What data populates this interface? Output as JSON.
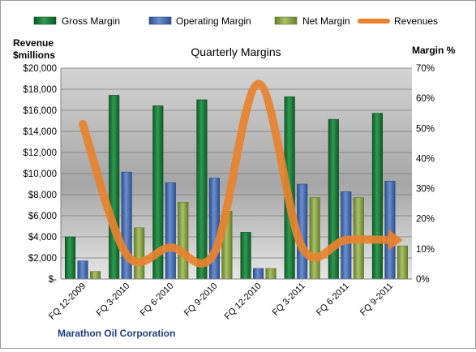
{
  "chart_data": {
    "type": "bar",
    "title": "Quarterly Margins",
    "company": "Marathon Oil Corporation",
    "y_left_label": [
      "Revenue",
      "$millions"
    ],
    "y_right_label": "Margin %",
    "categories": [
      "FQ 12-2009",
      "FQ 3-2010",
      "FQ 6-2010",
      "FQ 9-2010",
      "FQ 12-2010",
      "FQ 3-2011",
      "FQ 6-2011",
      "FQ 9-2011"
    ],
    "y_left_ticks": [
      "$-",
      "$2,000",
      "$4,000",
      "$6,000",
      "$8,000",
      "$10,000",
      "$12,000",
      "$14,000",
      "$16,000",
      "$18,000",
      "$20,000"
    ],
    "y_right_ticks": [
      "0%",
      "10%",
      "20%",
      "30%",
      "40%",
      "50%",
      "60%",
      "70%"
    ],
    "ylim_left": [
      0,
      20000
    ],
    "ylim_right": [
      0,
      70
    ],
    "grid": true,
    "legend_position": "top",
    "series": [
      {
        "name": "Gross Margin",
        "axis": "right",
        "color": "#1e7b3a",
        "values": [
          14,
          61,
          57.5,
          59.5,
          15.5,
          60.5,
          53,
          55
        ]
      },
      {
        "name": "Operating Margin",
        "axis": "right",
        "color": "#4a6eb0",
        "values": [
          6,
          35.5,
          32,
          33.5,
          3.5,
          31.5,
          29,
          32.5
        ]
      },
      {
        "name": "Net Margin",
        "axis": "right",
        "color": "#8aa445",
        "values": [
          2.5,
          17,
          25.5,
          22.5,
          3.5,
          27,
          27,
          11
        ]
      },
      {
        "name": "Revenues",
        "axis": "left",
        "type": "line",
        "color": "#e8822e",
        "values": [
          14700,
          2300,
          3000,
          2500,
          18500,
          3000,
          3700,
          3700
        ]
      }
    ]
  }
}
